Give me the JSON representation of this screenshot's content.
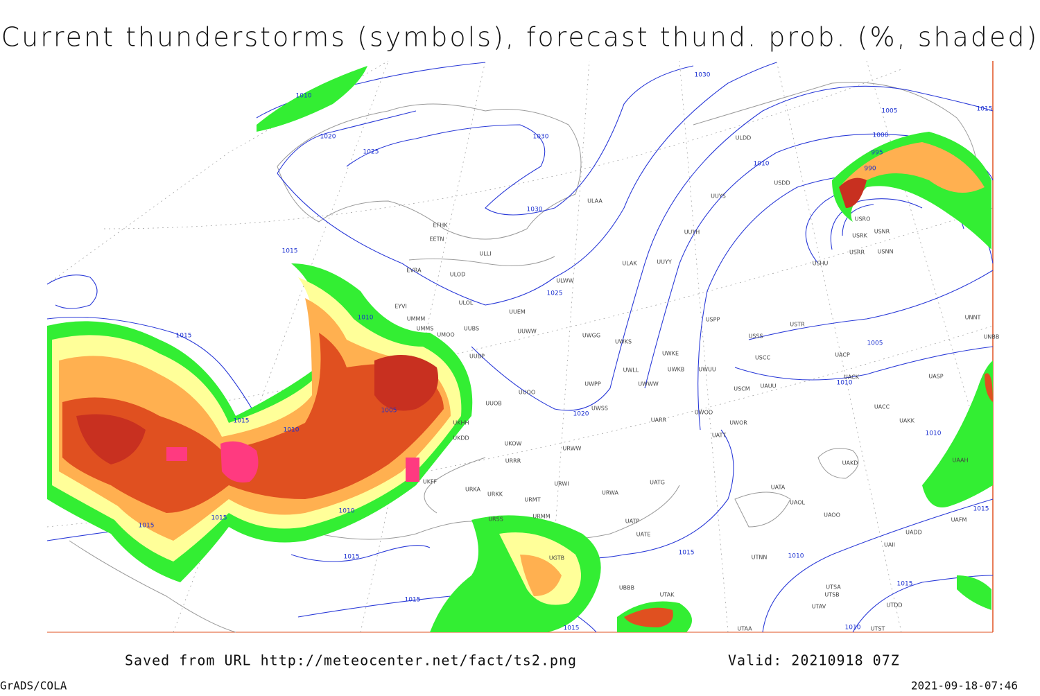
{
  "title": "Current thunderstorms (symbols), forecast thund. prob. (%, shaded)",
  "footer": {
    "source": "Saved from URL http://meteocenter.net/fact/ts2.png",
    "valid": "Valid: 20210918 07Z",
    "software": "GrADS/COLA",
    "timestamp": "2021-09-18-07:46"
  },
  "isobar_labels": [
    1010,
    1020,
    1025,
    1030,
    1030,
    1030,
    1025,
    1015,
    1010,
    1015,
    1005,
    1015,
    1010,
    1020,
    1010,
    1005,
    1000,
    995,
    990,
    1015,
    1005,
    1010,
    1010,
    1015,
    1010,
    1015,
    1015,
    1015,
    1015,
    1010,
    1015,
    1015,
    1015,
    1010
  ],
  "stations": [
    "EFHK",
    "EETN",
    "EVRA",
    "ULOD",
    "ULOL",
    "EYVI",
    "UMMS",
    "UMOO",
    "UUBS",
    "UUEM",
    "UUWW",
    "ULLI",
    "ULAA",
    "ULDD",
    "UUYS",
    "UUYH",
    "ULWW",
    "ULAK",
    "UUYY",
    "UWGG",
    "UWKS",
    "UWKE",
    "UWKB",
    "UWLL",
    "UWWW",
    "UWPP",
    "UUOO",
    "UUOB",
    "UUBP",
    "UKHH",
    "UKDD",
    "UKOW",
    "URRR",
    "URWI",
    "URMT",
    "URMM",
    "UWSS",
    "URWW",
    "UARR",
    "UWOO",
    "UWOR",
    "UATT",
    "USCM",
    "UAUU",
    "USCC",
    "USSS",
    "USTR",
    "USPP",
    "UWUU",
    "UACP",
    "UACK",
    "UASP",
    "UACC",
    "UAKK",
    "UAKD",
    "UATA",
    "UAOL",
    "UAOO",
    "UATG",
    "URWA",
    "UATP",
    "UATE",
    "UTNN",
    "UAII",
    "UADD",
    "UAFM",
    "UAAH",
    "UNNT",
    "UNBB",
    "USRK",
    "USNR",
    "USRR",
    "USNN",
    "USHU",
    "USRO",
    "USDD",
    "URKA",
    "URKK",
    "URSS",
    "UKFF",
    "UGTB",
    "UBBB",
    "UTAK",
    "UTAA",
    "UTSA",
    "UTSB",
    "UTAV",
    "UTST",
    "UTDD",
    "UMMM"
  ]
}
